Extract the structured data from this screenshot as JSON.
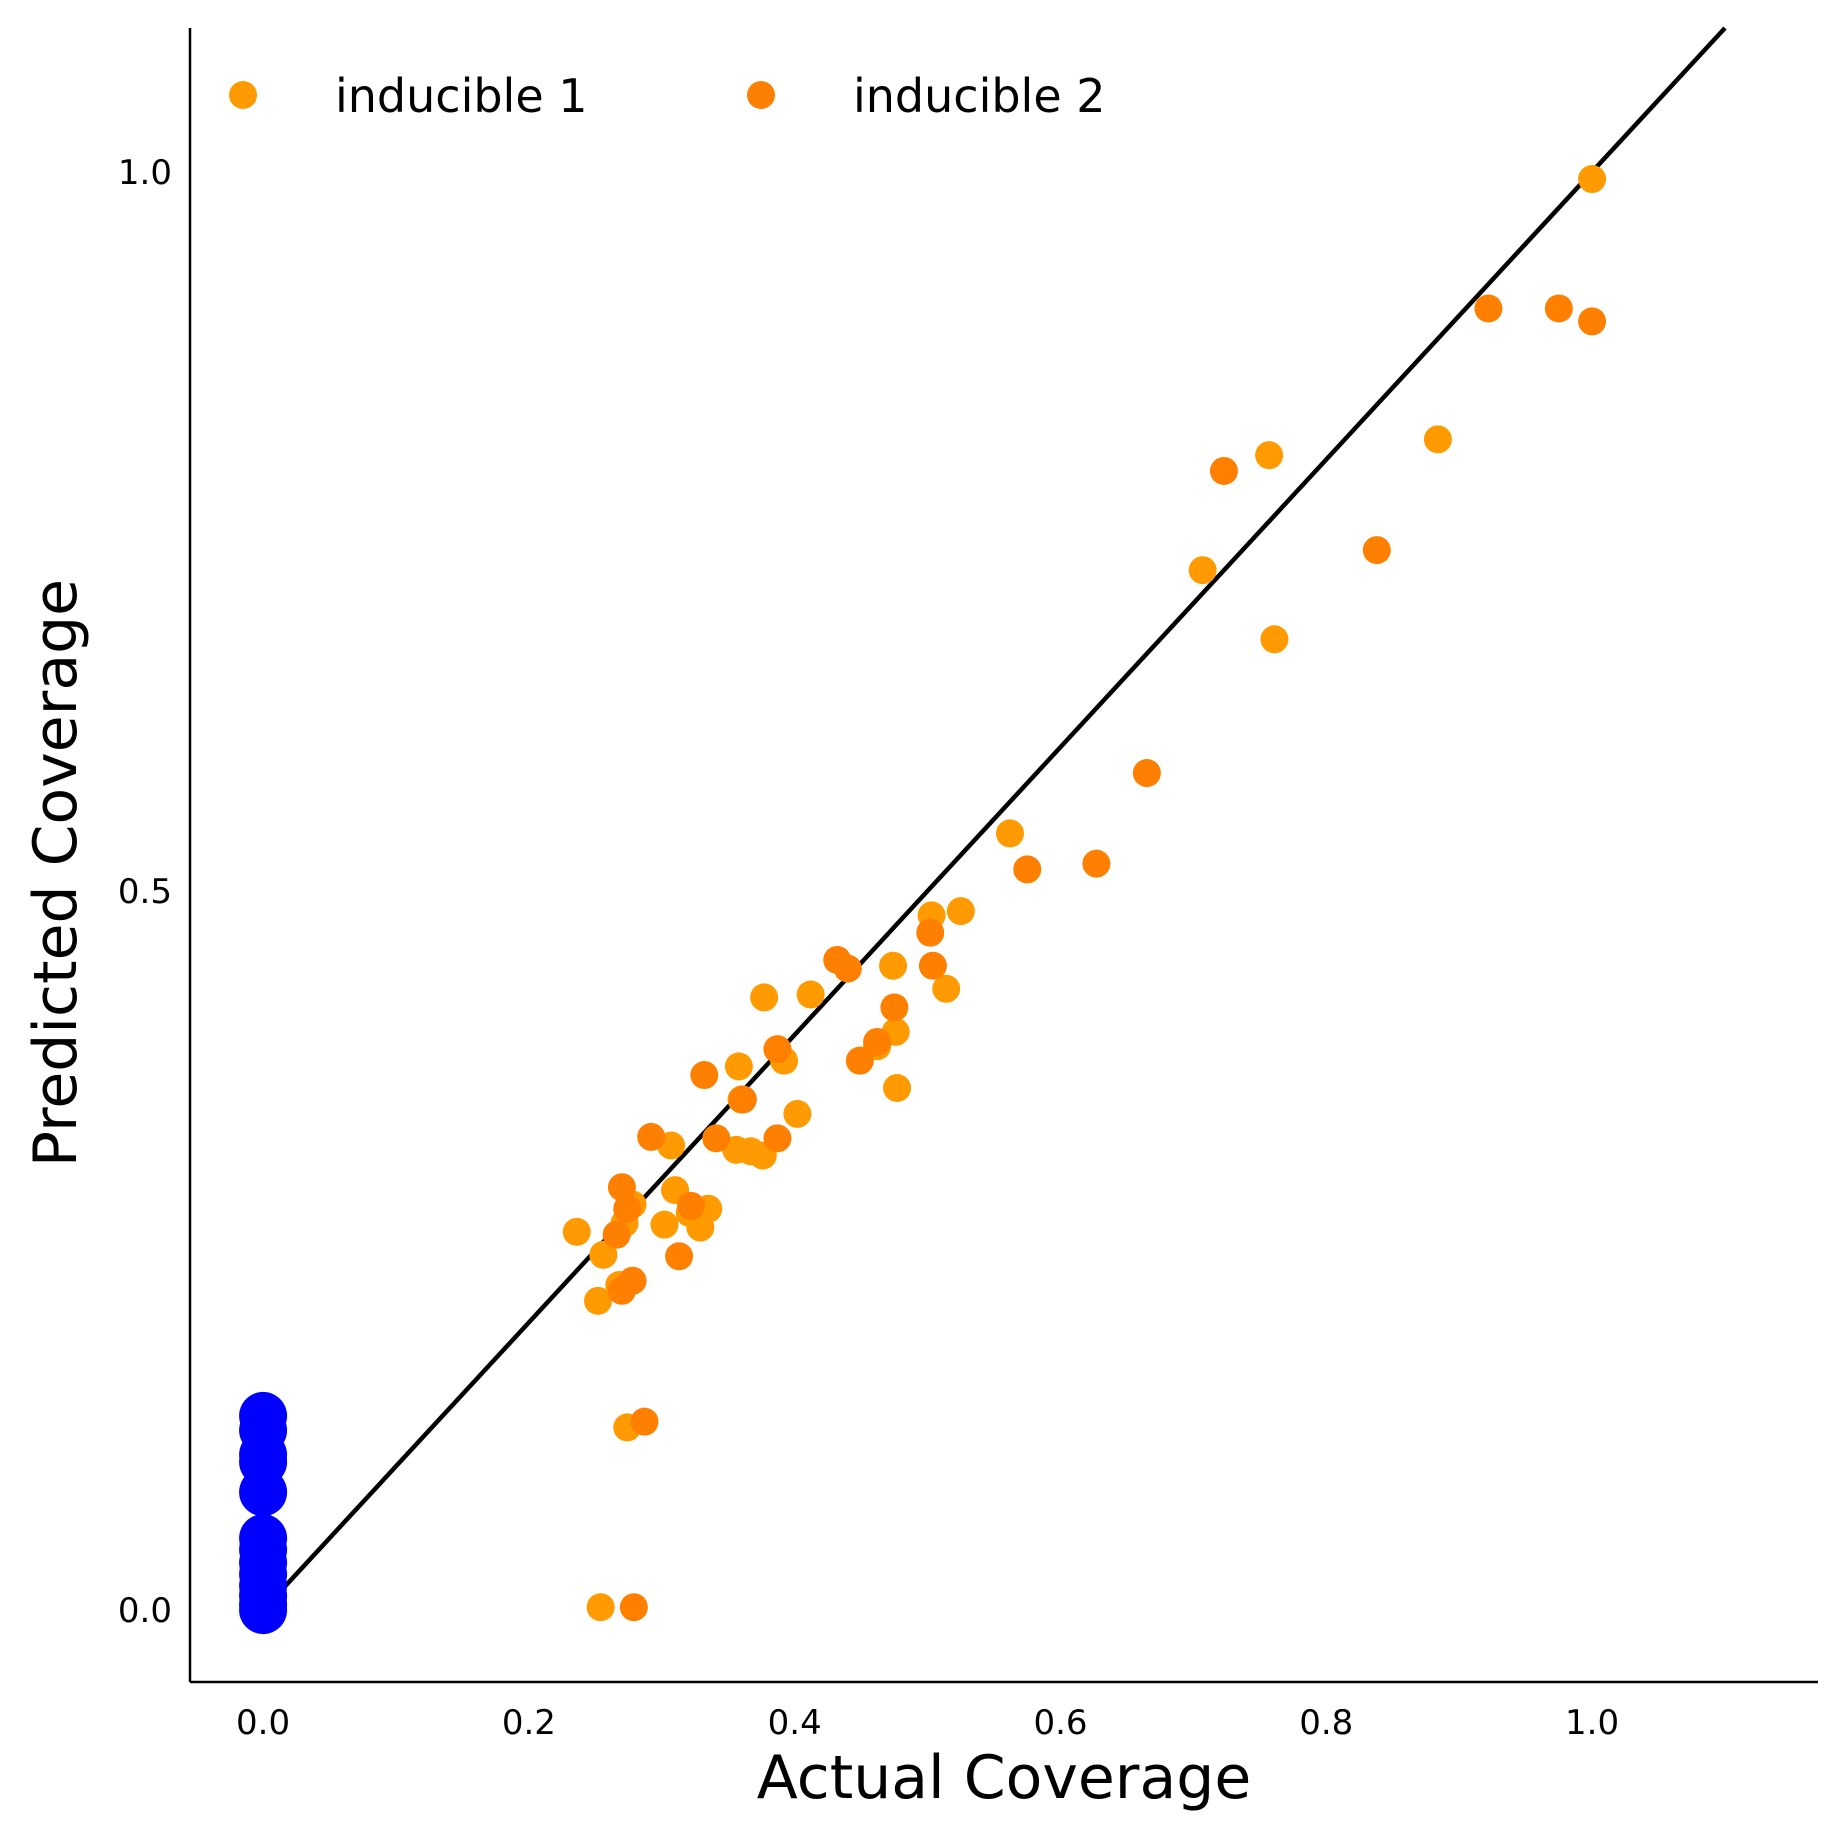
{
  "chart_data": {
    "type": "scatter",
    "title": "",
    "xlabel": "Actual Coverage",
    "ylabel": "Predicted Coverage",
    "xlim": [
      -0.055,
      1.17
    ],
    "ylim": [
      -0.05,
      1.1
    ],
    "x_ticks": [
      {
        "value": 0.0,
        "label": "0.0"
      },
      {
        "value": 0.2,
        "label": "0.2"
      },
      {
        "value": 0.4,
        "label": "0.4"
      },
      {
        "value": 0.6,
        "label": "0.6"
      },
      {
        "value": 0.8,
        "label": "0.8"
      },
      {
        "value": 1.0,
        "label": "1.0"
      }
    ],
    "y_ticks": [
      {
        "value": 0.0,
        "label": "0.0"
      },
      {
        "value": 0.5,
        "label": "0.5"
      },
      {
        "value": 1.0,
        "label": "1.0"
      }
    ],
    "grid": false,
    "legend_position": "top-left",
    "reference_line": {
      "from": [
        0,
        0
      ],
      "to": [
        1.1,
        1.1
      ],
      "color": "#000000"
    },
    "series": [
      {
        "name": "inducible 1",
        "color": "#FF9A00",
        "points": [
          [
            1.0,
            0.995
          ],
          [
            0.884,
            0.814
          ],
          [
            0.757,
            0.803
          ],
          [
            0.761,
            0.675
          ],
          [
            0.707,
            0.723
          ],
          [
            0.562,
            0.54
          ],
          [
            0.525,
            0.486
          ],
          [
            0.503,
            0.483
          ],
          [
            0.514,
            0.432
          ],
          [
            0.474,
            0.448
          ],
          [
            0.476,
            0.402
          ],
          [
            0.477,
            0.363
          ],
          [
            0.462,
            0.392
          ],
          [
            0.412,
            0.428
          ],
          [
            0.377,
            0.426
          ],
          [
            0.392,
            0.382
          ],
          [
            0.358,
            0.378
          ],
          [
            0.402,
            0.345
          ],
          [
            0.36,
            0.355
          ],
          [
            0.356,
            0.32
          ],
          [
            0.376,
            0.316
          ],
          [
            0.367,
            0.319
          ],
          [
            0.307,
            0.323
          ],
          [
            0.31,
            0.292
          ],
          [
            0.302,
            0.268
          ],
          [
            0.329,
            0.266
          ],
          [
            0.321,
            0.276
          ],
          [
            0.335,
            0.279
          ],
          [
            0.278,
            0.282
          ],
          [
            0.272,
            0.269
          ],
          [
            0.236,
            0.263
          ],
          [
            0.256,
            0.247
          ],
          [
            0.268,
            0.226
          ],
          [
            0.252,
            0.215
          ],
          [
            0.274,
            0.127
          ],
          [
            0.254,
            0.002
          ]
        ]
      },
      {
        "name": "inducible 2",
        "color": "#FF7F00",
        "points": [
          [
            1.0,
            0.896
          ],
          [
            0.975,
            0.905
          ],
          [
            0.922,
            0.905
          ],
          [
            0.838,
            0.737
          ],
          [
            0.723,
            0.792
          ],
          [
            0.665,
            0.582
          ],
          [
            0.627,
            0.519
          ],
          [
            0.575,
            0.515
          ],
          [
            0.502,
            0.471
          ],
          [
            0.504,
            0.448
          ],
          [
            0.432,
            0.452
          ],
          [
            0.44,
            0.446
          ],
          [
            0.475,
            0.419
          ],
          [
            0.462,
            0.395
          ],
          [
            0.449,
            0.382
          ],
          [
            0.387,
            0.39
          ],
          [
            0.332,
            0.372
          ],
          [
            0.361,
            0.355
          ],
          [
            0.341,
            0.328
          ],
          [
            0.387,
            0.328
          ],
          [
            0.292,
            0.329
          ],
          [
            0.322,
            0.281
          ],
          [
            0.27,
            0.294
          ],
          [
            0.274,
            0.279
          ],
          [
            0.266,
            0.261
          ],
          [
            0.313,
            0.246
          ],
          [
            0.278,
            0.229
          ],
          [
            0.27,
            0.222
          ],
          [
            0.287,
            0.131
          ],
          [
            0.279,
            0.002
          ]
        ]
      },
      {
        "name": "",
        "color": "#0000FF",
        "points": [
          [
            0.0,
            0.135
          ],
          [
            0.0,
            0.125
          ],
          [
            0.0,
            0.108
          ],
          [
            0.0,
            0.103
          ],
          [
            0.0,
            0.082
          ],
          [
            0.0,
            0.05
          ],
          [
            0.0,
            0.042
          ],
          [
            0.0,
            0.033
          ],
          [
            0.0,
            0.025
          ],
          [
            0.0,
            0.017
          ],
          [
            0.0,
            0.01
          ],
          [
            0.0,
            0.004
          ],
          [
            0.0,
            0.0
          ]
        ]
      }
    ]
  }
}
